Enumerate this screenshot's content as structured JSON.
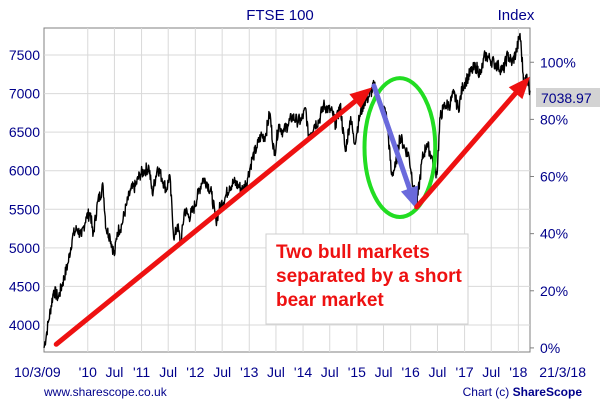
{
  "chart_data": {
    "type": "line",
    "title": "FTSE 100",
    "right_axis_title": "Index",
    "x_ticks": [
      {
        "date": "2009-03-10",
        "label": "10/3/09"
      },
      {
        "date": "2010-01-01",
        "label": "'10"
      },
      {
        "date": "2010-07-01",
        "label": "Jul"
      },
      {
        "date": "2011-01-01",
        "label": "'11"
      },
      {
        "date": "2011-07-01",
        "label": "Jul"
      },
      {
        "date": "2012-01-01",
        "label": "'12"
      },
      {
        "date": "2012-07-01",
        "label": "Jul"
      },
      {
        "date": "2013-01-01",
        "label": "'13"
      },
      {
        "date": "2013-07-01",
        "label": "Jul"
      },
      {
        "date": "2014-01-01",
        "label": "'14"
      },
      {
        "date": "2014-07-01",
        "label": "Jul"
      },
      {
        "date": "2015-01-01",
        "label": "'15"
      },
      {
        "date": "2015-07-01",
        "label": "Jul"
      },
      {
        "date": "2016-01-01",
        "label": "'16"
      },
      {
        "date": "2016-07-01",
        "label": "Jul"
      },
      {
        "date": "2017-01-01",
        "label": "'17"
      },
      {
        "date": "2017-07-01",
        "label": "Jul"
      },
      {
        "date": "2018-01-01",
        "label": "'18"
      },
      {
        "date": "2018-03-21",
        "label": "21/3/18"
      }
    ],
    "xlim": [
      "2009-03-10",
      "2018-03-21"
    ],
    "ylim": [
      3650,
      7850
    ],
    "left_ticks": [
      {
        "value": 4000,
        "label": "4000"
      },
      {
        "value": 4500,
        "label": "4500"
      },
      {
        "value": 5000,
        "label": "5000"
      },
      {
        "value": 5500,
        "label": "5500"
      },
      {
        "value": 6000,
        "label": "6000"
      },
      {
        "value": 6500,
        "label": "6500"
      },
      {
        "value": 7000,
        "label": "7000"
      },
      {
        "value": 7500,
        "label": "7500"
      }
    ],
    "right_ticks": [
      {
        "value": 0,
        "label": "0%"
      },
      {
        "value": 20,
        "label": "20%"
      },
      {
        "value": 40,
        "label": "40%"
      },
      {
        "value": 60,
        "label": "60%"
      },
      {
        "value": 80,
        "label": "80%"
      },
      {
        "value": 100,
        "label": "100%"
      }
    ],
    "right_axis_base": 3703,
    "last_value_label": "7038.97",
    "series": [
      {
        "color": "#000000",
        "points": [
          [
            "2009-03-10",
            3703
          ],
          [
            "2009-04-10",
            4050
          ],
          [
            "2009-05-15",
            4450
          ],
          [
            "2009-06-15",
            4350
          ],
          [
            "2009-07-15",
            4550
          ],
          [
            "2009-08-20",
            4800
          ],
          [
            "2009-09-20",
            5150
          ],
          [
            "2009-10-20",
            5250
          ],
          [
            "2009-11-20",
            5150
          ],
          [
            "2009-12-20",
            5400
          ],
          [
            "2010-01-20",
            5450
          ],
          [
            "2010-02-05",
            5150
          ],
          [
            "2010-03-10",
            5600
          ],
          [
            "2010-04-15",
            5800
          ],
          [
            "2010-05-05",
            5250
          ],
          [
            "2010-06-01",
            5150
          ],
          [
            "2010-07-01",
            4900
          ],
          [
            "2010-07-20",
            5200
          ],
          [
            "2010-08-20",
            5300
          ],
          [
            "2010-09-20",
            5550
          ],
          [
            "2010-10-20",
            5750
          ],
          [
            "2010-11-20",
            5800
          ],
          [
            "2010-12-20",
            5950
          ],
          [
            "2011-01-20",
            6000
          ],
          [
            "2011-02-20",
            6050
          ],
          [
            "2011-03-15",
            5700
          ],
          [
            "2011-04-20",
            6050
          ],
          [
            "2011-05-20",
            5900
          ],
          [
            "2011-06-20",
            5750
          ],
          [
            "2011-07-10",
            5950
          ],
          [
            "2011-08-10",
            5100
          ],
          [
            "2011-09-01",
            5300
          ],
          [
            "2011-09-25",
            5050
          ],
          [
            "2011-10-20",
            5500
          ],
          [
            "2011-11-20",
            5400
          ],
          [
            "2011-12-20",
            5500
          ],
          [
            "2012-01-20",
            5700
          ],
          [
            "2012-02-20",
            5900
          ],
          [
            "2012-03-20",
            5850
          ],
          [
            "2012-04-20",
            5700
          ],
          [
            "2012-05-20",
            5350
          ],
          [
            "2012-06-20",
            5550
          ],
          [
            "2012-07-20",
            5650
          ],
          [
            "2012-08-20",
            5800
          ],
          [
            "2012-09-20",
            5850
          ],
          [
            "2012-10-20",
            5800
          ],
          [
            "2012-11-20",
            5750
          ],
          [
            "2012-12-20",
            5900
          ],
          [
            "2013-01-20",
            6150
          ],
          [
            "2013-02-20",
            6300
          ],
          [
            "2013-03-20",
            6450
          ],
          [
            "2013-04-20",
            6450
          ],
          [
            "2013-05-20",
            6750
          ],
          [
            "2013-06-20",
            6200
          ],
          [
            "2013-07-20",
            6600
          ],
          [
            "2013-08-20",
            6500
          ],
          [
            "2013-09-20",
            6600
          ],
          [
            "2013-10-20",
            6700
          ],
          [
            "2013-11-20",
            6650
          ],
          [
            "2013-12-20",
            6650
          ],
          [
            "2014-01-20",
            6800
          ],
          [
            "2014-02-05",
            6450
          ],
          [
            "2014-03-20",
            6600
          ],
          [
            "2014-04-20",
            6650
          ],
          [
            "2014-05-20",
            6850
          ],
          [
            "2014-06-20",
            6800
          ],
          [
            "2014-07-20",
            6750
          ],
          [
            "2014-08-10",
            6600
          ],
          [
            "2014-09-10",
            6850
          ],
          [
            "2014-10-15",
            6250
          ],
          [
            "2014-11-20",
            6700
          ],
          [
            "2014-12-15",
            6350
          ],
          [
            "2015-01-20",
            6700
          ],
          [
            "2015-02-20",
            6900
          ],
          [
            "2015-03-20",
            6950
          ],
          [
            "2015-04-27",
            7100
          ],
          [
            "2015-05-20",
            7000
          ],
          [
            "2015-06-20",
            6800
          ],
          [
            "2015-07-20",
            6750
          ],
          [
            "2015-08-24",
            5950
          ],
          [
            "2015-09-20",
            6050
          ],
          [
            "2015-10-20",
            6450
          ],
          [
            "2015-11-20",
            6300
          ],
          [
            "2015-12-20",
            6200
          ],
          [
            "2016-01-20",
            5800
          ],
          [
            "2016-02-11",
            5550
          ],
          [
            "2016-03-20",
            6150
          ],
          [
            "2016-04-20",
            6350
          ],
          [
            "2016-05-20",
            6200
          ],
          [
            "2016-06-27",
            5950
          ],
          [
            "2016-07-20",
            6700
          ],
          [
            "2016-08-20",
            6850
          ],
          [
            "2016-09-20",
            6850
          ],
          [
            "2016-10-20",
            7000
          ],
          [
            "2016-11-20",
            6800
          ],
          [
            "2016-12-20",
            7100
          ],
          [
            "2017-01-20",
            7200
          ],
          [
            "2017-02-20",
            7300
          ],
          [
            "2017-03-20",
            7350
          ],
          [
            "2017-04-20",
            7250
          ],
          [
            "2017-05-20",
            7500
          ],
          [
            "2017-06-20",
            7450
          ],
          [
            "2017-07-20",
            7400
          ],
          [
            "2017-08-20",
            7350
          ],
          [
            "2017-09-20",
            7300
          ],
          [
            "2017-10-20",
            7500
          ],
          [
            "2017-11-20",
            7400
          ],
          [
            "2017-12-20",
            7550
          ],
          [
            "2018-01-12",
            7778
          ],
          [
            "2018-02-09",
            7100
          ],
          [
            "2018-02-27",
            7250
          ],
          [
            "2018-03-21",
            7039
          ]
        ]
      }
    ],
    "annotations": {
      "text_lines": [
        "Two bull markets",
        "separated by a short",
        "bear market"
      ],
      "arrows": [
        {
          "color": "#ee1111",
          "from": [
            "2009-06-01",
            3750
          ],
          "to": [
            "2015-04-15",
            7080
          ]
        },
        {
          "color": "#6a6adc",
          "from": [
            "2015-04-27",
            7100
          ],
          "to": [
            "2016-02-11",
            5500
          ]
        },
        {
          "color": "#ee1111",
          "from": [
            "2016-02-11",
            5530
          ],
          "to": [
            "2018-03-21",
            7220
          ]
        }
      ],
      "ellipse": {
        "color": "#22dd22",
        "center": [
          "2015-10-20",
          6300
        ],
        "rx_days": 240,
        "ry_value": 900
      }
    }
  },
  "footer": {
    "source_url": "www.sharescope.co.uk",
    "credit_prefix": "Chart (c) ",
    "credit_brand": "ShareScope"
  },
  "colors": {
    "text": "#00008b",
    "grid": "#d9d9d9",
    "axis": "#808080",
    "line": "#000000",
    "badge": "#d3d3d3"
  }
}
